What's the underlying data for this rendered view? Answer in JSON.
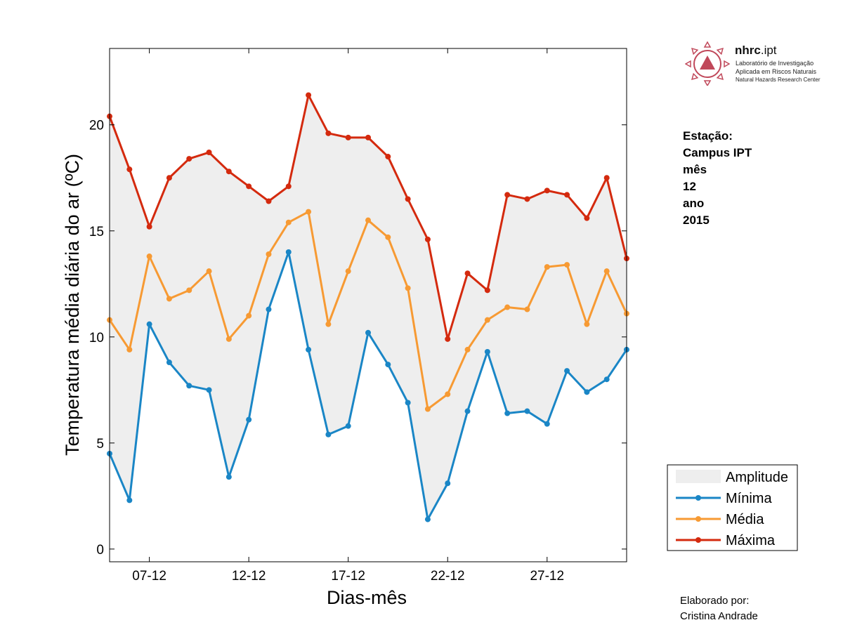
{
  "logo": {
    "name_bold": "nhrc",
    "name_rest": ".ipt",
    "lines": [
      "Laboratório de Investigação",
      "Aplicada em Riscos Naturais",
      "Natural Hazards Research Center"
    ],
    "color": "#c0485a"
  },
  "station": {
    "lines": [
      "Estação:",
      "Campus IPT",
      "mês",
      "12",
      "ano",
      "2015"
    ]
  },
  "credit": {
    "lines": [
      "Elaborado por:",
      "Cristina Andrade"
    ]
  },
  "chart_data": {
    "type": "line",
    "title": "",
    "xlabel": "Dias-mês",
    "ylabel": "Temperatura média diária do ar (ºC)",
    "x": [
      5,
      6,
      7,
      8,
      9,
      10,
      11,
      12,
      13,
      14,
      15,
      16,
      17,
      18,
      19,
      20,
      21,
      22,
      23,
      24,
      25,
      26,
      27,
      28,
      29,
      30,
      31
    ],
    "xlim": [
      5,
      31
    ],
    "ylim": [
      -0.6,
      23.6
    ],
    "yticks": [
      0,
      5,
      10,
      15,
      20
    ],
    "xticks": [
      {
        "x": 7,
        "label": "07-12"
      },
      {
        "x": 12,
        "label": "12-12"
      },
      {
        "x": 17,
        "label": "17-12"
      },
      {
        "x": 22,
        "label": "22-12"
      },
      {
        "x": 27,
        "label": "27-12"
      }
    ],
    "amplitude": {
      "name": "Amplitude",
      "color": "#eeeeee",
      "between": [
        "Mínima",
        "Máxima"
      ]
    },
    "series": [
      {
        "name": "Mínima",
        "color": "#1a86c6",
        "values": [
          4.5,
          2.3,
          10.6,
          8.8,
          7.7,
          7.5,
          3.4,
          6.1,
          11.3,
          14.0,
          9.4,
          5.4,
          5.8,
          10.2,
          8.7,
          6.9,
          1.4,
          3.1,
          6.5,
          9.3,
          6.4,
          6.5,
          5.9,
          8.4,
          7.4,
          8.0,
          9.4
        ]
      },
      {
        "name": "Média",
        "color": "#f79a33",
        "values": [
          10.8,
          9.4,
          13.8,
          11.8,
          12.2,
          13.1,
          9.9,
          11.0,
          13.9,
          15.4,
          15.9,
          10.6,
          13.1,
          15.5,
          14.7,
          12.3,
          6.6,
          7.3,
          9.4,
          10.8,
          11.4,
          11.3,
          13.3,
          13.4,
          10.6,
          13.1,
          11.1
        ]
      },
      {
        "name": "Máxima",
        "color": "#d42a0e",
        "values": [
          20.4,
          17.9,
          15.2,
          17.5,
          18.4,
          18.7,
          17.8,
          17.1,
          16.4,
          17.1,
          21.4,
          19.6,
          19.4,
          19.4,
          18.5,
          16.5,
          14.6,
          9.9,
          13.0,
          12.2,
          16.7,
          16.5,
          16.9,
          16.7,
          15.6,
          17.5,
          13.7
        ]
      }
    ],
    "legend": {
      "placement": "bottom-right outside"
    },
    "grid": false
  }
}
